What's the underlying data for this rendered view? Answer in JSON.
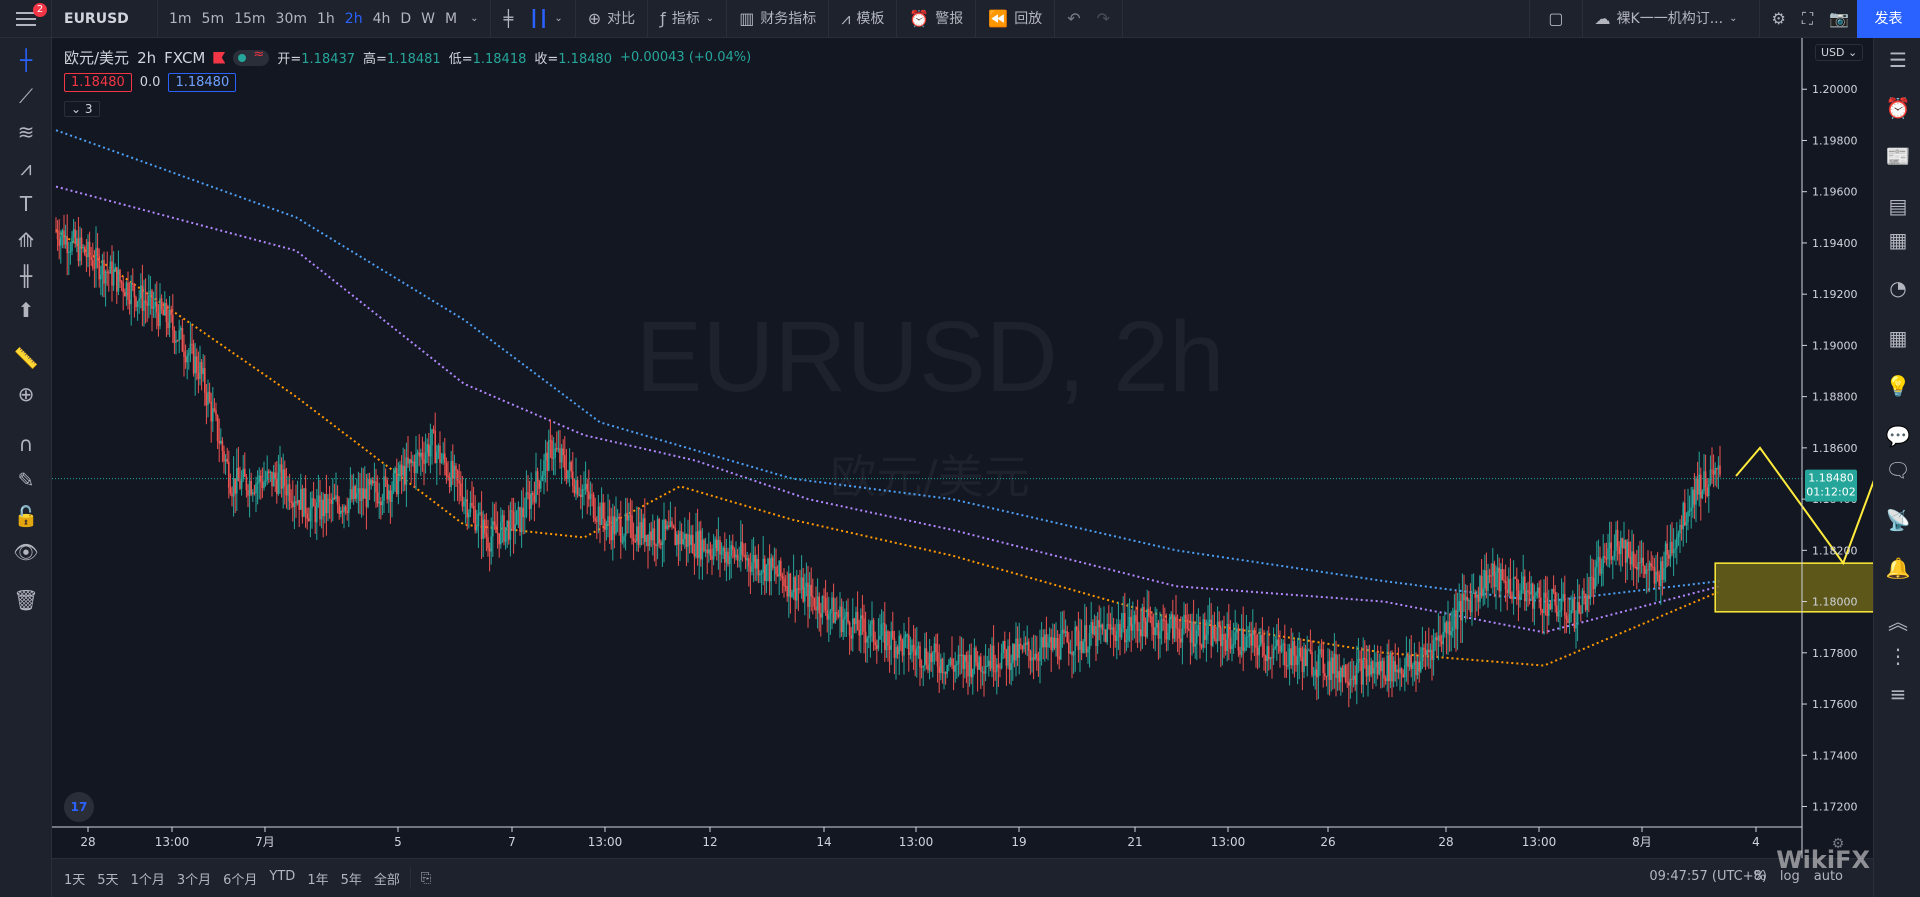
{
  "header": {
    "notification_count": "2",
    "symbol": "EURUSD",
    "intervals": [
      {
        "label": "1m",
        "active": false
      },
      {
        "label": "5m",
        "active": false
      },
      {
        "label": "15m",
        "active": false
      },
      {
        "label": "30m",
        "active": false
      },
      {
        "label": "1h",
        "active": false
      },
      {
        "label": "2h",
        "active": true
      },
      {
        "label": "4h",
        "active": false
      },
      {
        "label": "D",
        "active": false
      },
      {
        "label": "W",
        "active": false
      },
      {
        "label": "M",
        "active": false
      }
    ],
    "compare_label": "对比",
    "indicators_label": "指标",
    "financials_label": "财务指标",
    "templates_label": "模板",
    "alert_label": "警报",
    "replay_label": "回放",
    "layout_name": "裸K一一机构订...",
    "publish_label": "发表"
  },
  "legend": {
    "symbol_text": "欧元/美元",
    "interval": "2h",
    "exchange": "FXCM",
    "open_key": "开=",
    "open": "1.18437",
    "high_key": "高=",
    "high": "1.18481",
    "low_key": "低=",
    "low": "1.18418",
    "close_key": "收=",
    "close": "1.18480",
    "change": "+0.00043 (+0.04%)",
    "bid": "1.18480",
    "spread": "0.0",
    "ask": "1.18480",
    "indicator_count": "3"
  },
  "watermark": {
    "line1": "EURUSD, 2h",
    "line2": "欧元/美元"
  },
  "price_axis": {
    "currency": "USD",
    "current_price": "1.18480",
    "countdown": "01:12:02"
  },
  "time_axis_labels": [
    "28",
    "13:00",
    "7月",
    "5",
    "7",
    "13:00",
    "12",
    "14",
    "13:00",
    "19",
    "21",
    "13:00",
    "26",
    "28",
    "13:00",
    "8月",
    "4"
  ],
  "bottom": {
    "ranges": [
      "1天",
      "5天",
      "1个月",
      "3个月",
      "6个月",
      "YTD",
      "1年",
      "5年",
      "全部"
    ],
    "clock": "09:47:57 (UTC+8)",
    "scale_percent": "%",
    "scale_log": "log",
    "scale_auto": "auto"
  },
  "colors": {
    "up": "#26a69a",
    "down": "#ef5350",
    "ma_fast": "#ff9800",
    "ma_mid": "#b388ff",
    "ma_slow": "#4d9ff5",
    "zone_fill": "#6b6418",
    "zone_stroke": "#ffeb3b",
    "projection": "#ffeb3b",
    "price_tag": "#26a69a"
  },
  "chart_data": {
    "type": "candlestick",
    "title": "EURUSD, 2h",
    "ylim": [
      1.1712,
      1.202
    ],
    "y_ticks": [
      1.172,
      1.174,
      1.176,
      1.178,
      1.18,
      1.182,
      1.184,
      1.186,
      1.188,
      1.19,
      1.192,
      1.194,
      1.196,
      1.198,
      1.2
    ],
    "current_price": 1.1848,
    "ohlc_anchors": [
      {
        "x": 0,
        "close": 1.1945
      },
      {
        "x": 20,
        "close": 1.1935
      },
      {
        "x": 40,
        "close": 1.1925
      },
      {
        "x": 70,
        "close": 1.191
      },
      {
        "x": 90,
        "close": 1.189
      },
      {
        "x": 110,
        "close": 1.1846
      },
      {
        "x": 140,
        "close": 1.1848
      },
      {
        "x": 160,
        "close": 1.1835
      },
      {
        "x": 185,
        "close": 1.184
      },
      {
        "x": 210,
        "close": 1.1845
      },
      {
        "x": 235,
        "close": 1.1862
      },
      {
        "x": 270,
        "close": 1.1825
      },
      {
        "x": 290,
        "close": 1.1832
      },
      {
        "x": 310,
        "close": 1.186
      },
      {
        "x": 345,
        "close": 1.183
      },
      {
        "x": 390,
        "close": 1.1825
      },
      {
        "x": 440,
        "close": 1.1815
      },
      {
        "x": 500,
        "close": 1.179
      },
      {
        "x": 560,
        "close": 1.1775
      },
      {
        "x": 620,
        "close": 1.1782
      },
      {
        "x": 680,
        "close": 1.1792
      },
      {
        "x": 740,
        "close": 1.1785
      },
      {
        "x": 805,
        "close": 1.1773
      },
      {
        "x": 850,
        "close": 1.1775
      },
      {
        "x": 895,
        "close": 1.181
      },
      {
        "x": 950,
        "close": 1.1795
      },
      {
        "x": 975,
        "close": 1.1825
      },
      {
        "x": 1000,
        "close": 1.1808
      },
      {
        "x": 1025,
        "close": 1.1845
      },
      {
        "x": 1040,
        "close": 1.1849
      }
    ],
    "ma_lines": [
      {
        "name": "",
        "color": "#ff9800",
        "points": [
          [
            0,
            1.1945
          ],
          [
            150,
            1.188
          ],
          [
            255,
            1.183
          ],
          [
            330,
            1.1825
          ],
          [
            390,
            1.1845
          ],
          [
            460,
            1.1832
          ],
          [
            560,
            1.1818
          ],
          [
            700,
            1.1793
          ],
          [
            830,
            1.178
          ],
          [
            930,
            1.1775
          ],
          [
            1040,
            1.1804
          ]
        ]
      },
      {
        "name": "",
        "color": "#b388ff",
        "points": [
          [
            0,
            1.1962
          ],
          [
            150,
            1.1937
          ],
          [
            255,
            1.1885
          ],
          [
            330,
            1.1865
          ],
          [
            400,
            1.1855
          ],
          [
            470,
            1.184
          ],
          [
            560,
            1.1828
          ],
          [
            700,
            1.1806
          ],
          [
            830,
            1.18
          ],
          [
            930,
            1.1788
          ],
          [
            1040,
            1.1806
          ]
        ]
      },
      {
        "name": "",
        "color": "#4d9ff5",
        "points": [
          [
            0,
            1.1984
          ],
          [
            150,
            1.195
          ],
          [
            255,
            1.191
          ],
          [
            340,
            1.187
          ],
          [
            460,
            1.1848
          ],
          [
            560,
            1.184
          ],
          [
            700,
            1.182
          ],
          [
            830,
            1.1808
          ],
          [
            930,
            1.18
          ],
          [
            1040,
            1.1808
          ]
        ]
      }
    ],
    "zone": {
      "x_start": 1037,
      "x_end": 1275,
      "y_high": 1.1815,
      "y_low": 1.1796
    },
    "projection_path": [
      [
        1050,
        1.1849
      ],
      [
        1065,
        1.186
      ],
      [
        1117,
        1.1815
      ],
      [
        1170,
        1.1904
      ]
    ]
  }
}
